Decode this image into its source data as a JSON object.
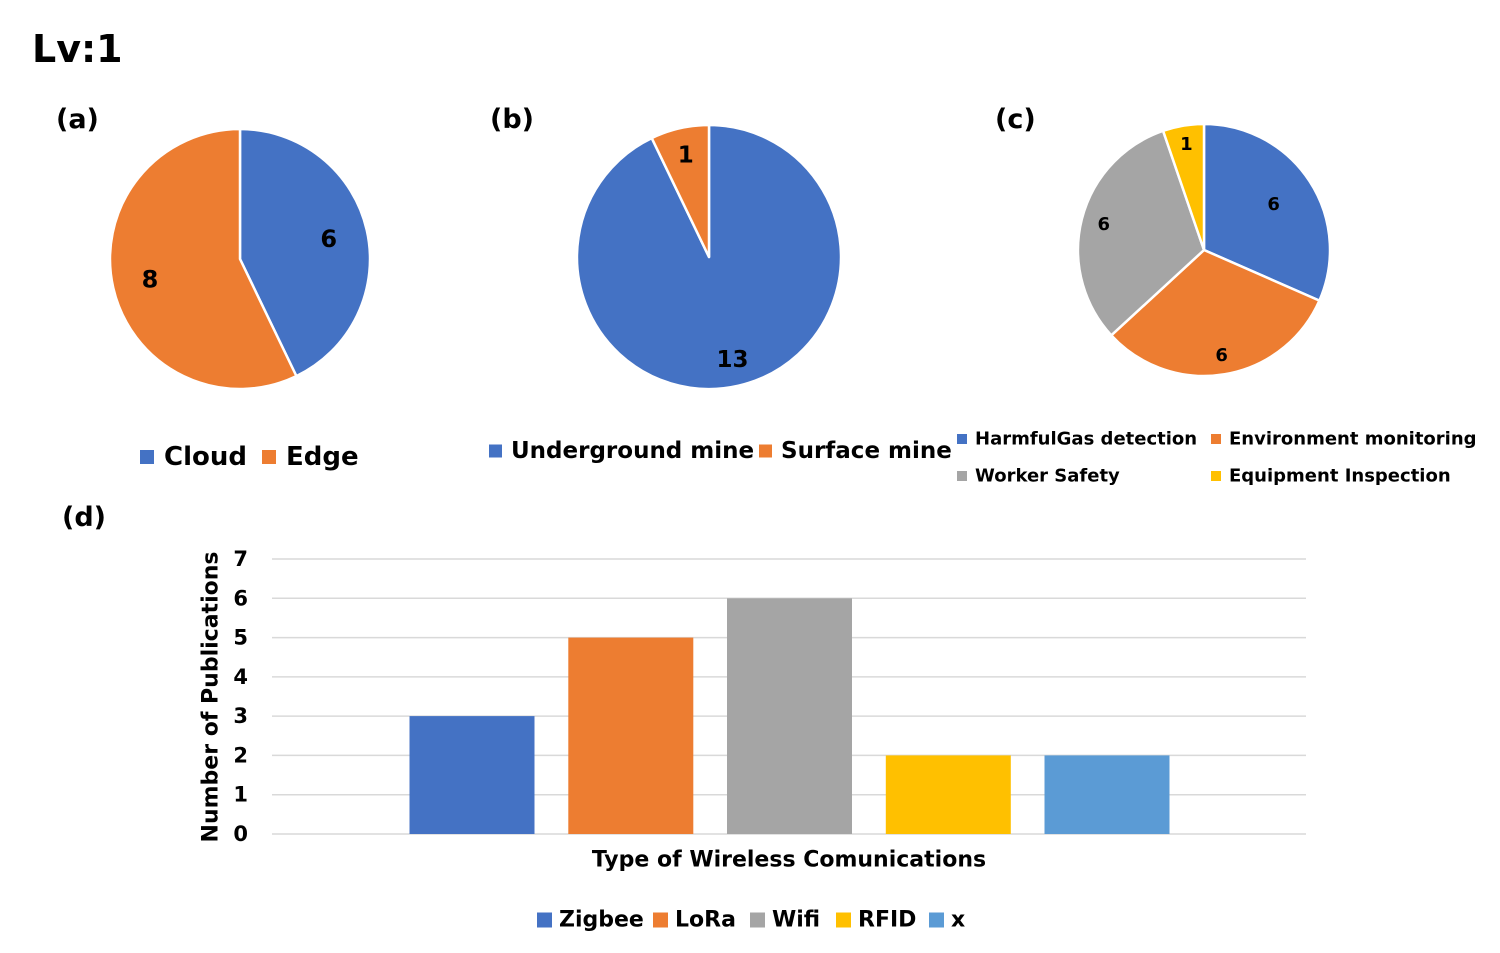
{
  "page_title": "Lv:1",
  "colors": {
    "blue": "#4472C4",
    "orange": "#ED7D31",
    "gray": "#A5A5A5",
    "yellow": "#FFC000",
    "light_blue": "#5B9BD5",
    "grid": "#D9D9D9",
    "slice_border": "#ffffff"
  },
  "chart_data": [
    {
      "id": "a",
      "panel_label": "(a)",
      "type": "pie",
      "categories": [
        "Cloud",
        "Edge"
      ],
      "values": [
        6,
        8
      ],
      "labels": [
        "6",
        "8"
      ],
      "colors": [
        "#4472C4",
        "#ED7D31"
      ],
      "legend": [
        "Cloud",
        "Edge"
      ],
      "legend_position": "bottom"
    },
    {
      "id": "b",
      "panel_label": "(b)",
      "type": "pie",
      "categories": [
        "Underground mine",
        "Surface mine"
      ],
      "values": [
        13,
        1
      ],
      "labels": [
        "13",
        "1"
      ],
      "colors": [
        "#4472C4",
        "#ED7D31"
      ],
      "legend": [
        "Underground mine",
        "Surface mine"
      ],
      "legend_position": "bottom"
    },
    {
      "id": "c",
      "panel_label": "(c)",
      "type": "pie",
      "categories": [
        "HarmfulGas detection",
        "Environment monitoring",
        "Worker Safety",
        "Equipment Inspection"
      ],
      "values": [
        6,
        6,
        6,
        1
      ],
      "labels": [
        "6",
        "6",
        "6",
        "1"
      ],
      "colors": [
        "#4472C4",
        "#ED7D31",
        "#A5A5A5",
        "#FFC000"
      ],
      "legend": [
        "HarmfulGas detection",
        "Environment monitoring",
        "Worker Safety",
        "Equipment Inspection"
      ],
      "legend_position": "bottom"
    },
    {
      "id": "d",
      "panel_label": "(d)",
      "type": "bar",
      "categories": [
        "Zigbee",
        "LoRa",
        "Wifi",
        "RFID",
        "x"
      ],
      "values": [
        3,
        5,
        6,
        2,
        2
      ],
      "colors": [
        "#4472C4",
        "#ED7D31",
        "#A5A5A5",
        "#FFC000",
        "#5B9BD5"
      ],
      "xlabel": "Type of Wireless Comunications",
      "ylabel": "Number of Publications",
      "ylim": [
        0,
        7
      ],
      "yticks": [
        "0",
        "1",
        "2",
        "3",
        "4",
        "5",
        "6",
        "7"
      ],
      "grid": true,
      "legend": [
        "Zigbee",
        "LoRa",
        "Wifi",
        "RFID",
        "x"
      ],
      "legend_position": "bottom"
    }
  ]
}
